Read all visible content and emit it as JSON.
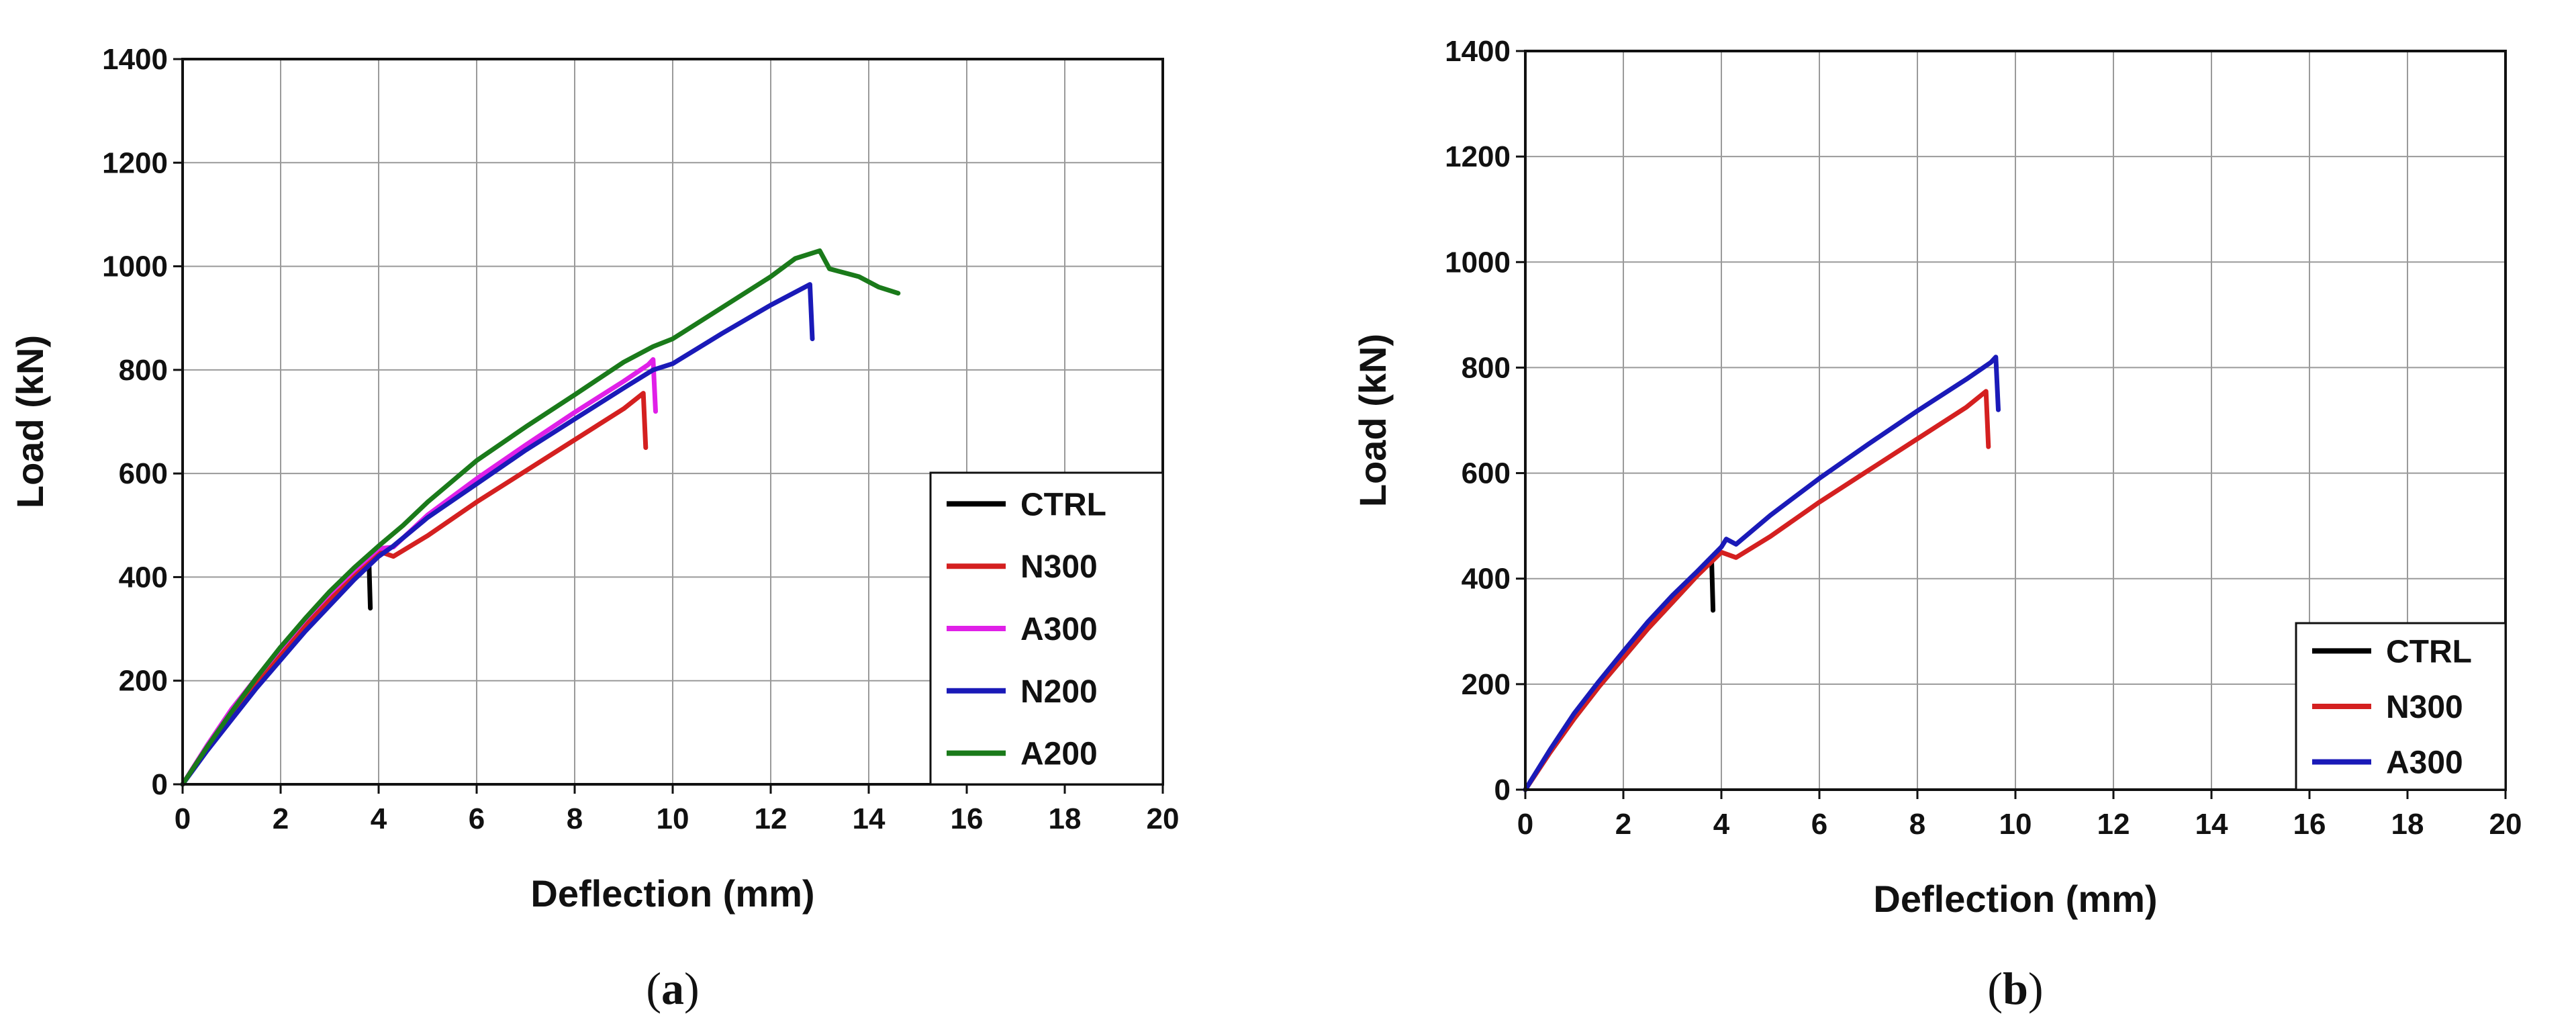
{
  "chart_data": [
    {
      "type": "line",
      "panel_label": {
        "open": "(",
        "letter": "a",
        "close": ")"
      },
      "xlabel": "Deflection (mm)",
      "ylabel": "Load (kN)",
      "xlim": [
        0,
        20
      ],
      "ylim": [
        0,
        1400
      ],
      "xticks": [
        0,
        2,
        4,
        6,
        8,
        10,
        12,
        14,
        16,
        18,
        20
      ],
      "yticks": [
        0,
        200,
        400,
        600,
        800,
        1000,
        1200,
        1400
      ],
      "grid": true,
      "legend_position": "bottom-right",
      "series": [
        {
          "name": "CTRL",
          "color": "#000000",
          "points": [
            [
              0,
              0
            ],
            [
              0.5,
              70
            ],
            [
              1,
              135
            ],
            [
              1.5,
              195
            ],
            [
              2,
              250
            ],
            [
              2.5,
              305
            ],
            [
              3,
              355
            ],
            [
              3.5,
              405
            ],
            [
              3.8,
              440
            ],
            [
              3.83,
              340
            ]
          ]
        },
        {
          "name": "N300",
          "color": "#d42020",
          "points": [
            [
              0,
              0
            ],
            [
              0.5,
              70
            ],
            [
              1,
              135
            ],
            [
              1.5,
              195
            ],
            [
              2,
              250
            ],
            [
              2.5,
              305
            ],
            [
              3,
              355
            ],
            [
              3.5,
              405
            ],
            [
              4,
              450
            ],
            [
              4.3,
              440
            ],
            [
              5,
              480
            ],
            [
              6,
              545
            ],
            [
              7,
              605
            ],
            [
              8,
              665
            ],
            [
              9,
              725
            ],
            [
              9.4,
              755
            ],
            [
              9.45,
              650
            ]
          ]
        },
        {
          "name": "A300",
          "color": "#e020e8",
          "points": [
            [
              0,
              0
            ],
            [
              0.5,
              75
            ],
            [
              1,
              145
            ],
            [
              1.5,
              205
            ],
            [
              2,
              262
            ],
            [
              2.5,
              318
            ],
            [
              3,
              368
            ],
            [
              3.5,
              413
            ],
            [
              4,
              455
            ],
            [
              4.3,
              458
            ],
            [
              5,
              520
            ],
            [
              6,
              590
            ],
            [
              7,
              655
            ],
            [
              8,
              718
            ],
            [
              9,
              778
            ],
            [
              9.5,
              810
            ],
            [
              9.6,
              820
            ],
            [
              9.65,
              720
            ]
          ]
        },
        {
          "name": "N200",
          "color": "#1a1ab8",
          "points": [
            [
              0,
              0
            ],
            [
              0.5,
              65
            ],
            [
              1,
              125
            ],
            [
              1.5,
              185
            ],
            [
              2,
              240
            ],
            [
              2.5,
              295
            ],
            [
              3,
              345
            ],
            [
              3.5,
              395
            ],
            [
              4,
              440
            ],
            [
              4.3,
              460
            ],
            [
              5,
              515
            ],
            [
              6,
              580
            ],
            [
              7,
              645
            ],
            [
              8,
              705
            ],
            [
              9,
              765
            ],
            [
              9.6,
              800
            ],
            [
              10,
              812
            ],
            [
              11,
              870
            ],
            [
              12,
              925
            ],
            [
              12.8,
              965
            ],
            [
              12.85,
              860
            ]
          ]
        },
        {
          "name": "A200",
          "color": "#1a7a1a",
          "points": [
            [
              0,
              0
            ],
            [
              0.5,
              72
            ],
            [
              1,
              140
            ],
            [
              1.5,
              205
            ],
            [
              2,
              265
            ],
            [
              2.5,
              320
            ],
            [
              3,
              372
            ],
            [
              3.5,
              418
            ],
            [
              4,
              460
            ],
            [
              4.5,
              500
            ],
            [
              5,
              545
            ],
            [
              6,
              625
            ],
            [
              7,
              690
            ],
            [
              8,
              752
            ],
            [
              9,
              815
            ],
            [
              9.6,
              845
            ],
            [
              10,
              860
            ],
            [
              11,
              920
            ],
            [
              12,
              980
            ],
            [
              12.5,
              1015
            ],
            [
              13,
              1030
            ],
            [
              13.2,
              995
            ],
            [
              13.8,
              980
            ],
            [
              14.2,
              960
            ],
            [
              14.6,
              948
            ]
          ]
        }
      ]
    },
    {
      "type": "line",
      "panel_label": {
        "open": "(",
        "letter": "b",
        "close": ")"
      },
      "xlabel": "Deflection (mm)",
      "ylabel": "Load (kN)",
      "xlim": [
        0,
        20
      ],
      "ylim": [
        0,
        1400
      ],
      "xticks": [
        0,
        2,
        4,
        6,
        8,
        10,
        12,
        14,
        16,
        18,
        20
      ],
      "yticks": [
        0,
        200,
        400,
        600,
        800,
        1000,
        1200,
        1400
      ],
      "grid": true,
      "legend_position": "bottom-right",
      "series": [
        {
          "name": "CTRL",
          "color": "#000000",
          "points": [
            [
              0,
              0
            ],
            [
              0.5,
              70
            ],
            [
              1,
              135
            ],
            [
              1.5,
              195
            ],
            [
              2,
              250
            ],
            [
              2.5,
              305
            ],
            [
              3,
              355
            ],
            [
              3.5,
              405
            ],
            [
              3.8,
              440
            ],
            [
              3.83,
              340
            ]
          ]
        },
        {
          "name": "N300",
          "color": "#d42020",
          "points": [
            [
              0,
              0
            ],
            [
              0.5,
              70
            ],
            [
              1,
              135
            ],
            [
              1.5,
              195
            ],
            [
              2,
              250
            ],
            [
              2.5,
              305
            ],
            [
              3,
              355
            ],
            [
              3.5,
              405
            ],
            [
              4,
              450
            ],
            [
              4.3,
              440
            ],
            [
              5,
              480
            ],
            [
              6,
              545
            ],
            [
              7,
              605
            ],
            [
              8,
              665
            ],
            [
              9,
              725
            ],
            [
              9.4,
              755
            ],
            [
              9.45,
              650
            ]
          ]
        },
        {
          "name": "A300",
          "color": "#1a1ab8",
          "points": [
            [
              0,
              0
            ],
            [
              0.5,
              75
            ],
            [
              1,
              145
            ],
            [
              1.5,
              205
            ],
            [
              2,
              262
            ],
            [
              2.5,
              318
            ],
            [
              3,
              368
            ],
            [
              3.5,
              413
            ],
            [
              4,
              460
            ],
            [
              4.1,
              475
            ],
            [
              4.3,
              465
            ],
            [
              5,
              520
            ],
            [
              6,
              590
            ],
            [
              7,
              655
            ],
            [
              8,
              718
            ],
            [
              9,
              778
            ],
            [
              9.5,
              810
            ],
            [
              9.6,
              820
            ],
            [
              9.65,
              720
            ]
          ]
        }
      ]
    }
  ]
}
